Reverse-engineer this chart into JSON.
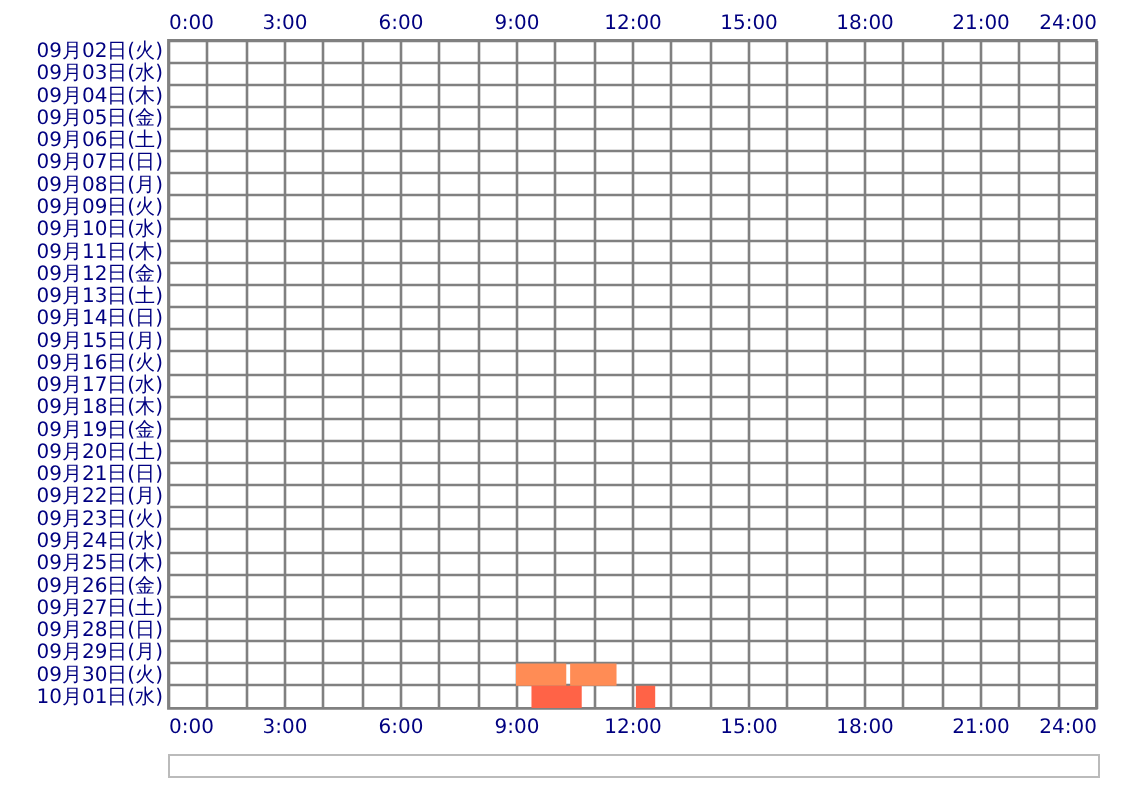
{
  "chart_data": {
    "type": "bar",
    "orientation": "horizontal",
    "categories": [
      "09月02日(火)",
      "09月03日(水)",
      "09月04日(木)",
      "09月05日(金)",
      "09月06日(土)",
      "09月07日(日)",
      "09月08日(月)",
      "09月09日(火)",
      "09月10日(水)",
      "09月11日(木)",
      "09月12日(金)",
      "09月13日(土)",
      "09月14日(日)",
      "09月15日(月)",
      "09月16日(火)",
      "09月17日(水)",
      "09月18日(木)",
      "09月19日(金)",
      "09月20日(土)",
      "09月21日(日)",
      "09月22日(月)",
      "09月23日(火)",
      "09月24日(水)",
      "09月25日(木)",
      "09月26日(金)",
      "09月27日(土)",
      "09月28日(日)",
      "09月29日(月)",
      "09月30日(火)",
      "10月01日(水)"
    ],
    "series": [
      {
        "values": [
          null,
          null,
          null,
          null,
          null,
          null,
          null,
          null,
          null,
          null,
          null,
          null,
          null,
          null,
          null,
          null,
          null,
          null,
          null,
          null,
          null,
          null,
          null,
          null,
          null,
          null,
          null,
          null,
          1.3,
          1.3
        ],
        "base": [
          null,
          null,
          null,
          null,
          null,
          null,
          null,
          null,
          null,
          null,
          null,
          null,
          null,
          null,
          null,
          null,
          null,
          null,
          null,
          null,
          null,
          null,
          null,
          null,
          null,
          null,
          null,
          null,
          9.0,
          9.4
        ],
        "colors": [
          null,
          null,
          null,
          null,
          null,
          null,
          null,
          null,
          null,
          null,
          null,
          null,
          null,
          null,
          null,
          null,
          null,
          null,
          null,
          null,
          null,
          null,
          null,
          null,
          null,
          null,
          null,
          null,
          "#ff8c55",
          "#ff6347"
        ]
      },
      {
        "values": [
          null,
          null,
          null,
          null,
          null,
          null,
          null,
          null,
          null,
          null,
          null,
          null,
          null,
          null,
          null,
          null,
          null,
          null,
          null,
          null,
          null,
          null,
          null,
          null,
          null,
          null,
          null,
          null,
          1.2,
          0.5
        ],
        "base": [
          null,
          null,
          null,
          null,
          null,
          null,
          null,
          null,
          null,
          null,
          null,
          null,
          null,
          null,
          null,
          null,
          null,
          null,
          null,
          null,
          null,
          null,
          null,
          null,
          null,
          null,
          null,
          null,
          10.4,
          12.1
        ],
        "colors": [
          null,
          null,
          null,
          null,
          null,
          null,
          null,
          null,
          null,
          null,
          null,
          null,
          null,
          null,
          null,
          null,
          null,
          null,
          null,
          null,
          null,
          null,
          null,
          null,
          null,
          null,
          null,
          null,
          "#ff8c55",
          "#ff6347"
        ]
      }
    ],
    "xlim": [
      0,
      24
    ],
    "xticks": [
      {
        "value": 0,
        "label": "0:00"
      },
      {
        "value": 1,
        "label": null
      },
      {
        "value": 2,
        "label": null
      },
      {
        "value": 3,
        "label": "3:00"
      },
      {
        "value": 4,
        "label": null
      },
      {
        "value": 5,
        "label": null
      },
      {
        "value": 6,
        "label": "6:00"
      },
      {
        "value": 7,
        "label": null
      },
      {
        "value": 8,
        "label": null
      },
      {
        "value": 9,
        "label": "9:00"
      },
      {
        "value": 10,
        "label": null
      },
      {
        "value": 11,
        "label": null
      },
      {
        "value": 12,
        "label": "12:00"
      },
      {
        "value": 13,
        "label": null
      },
      {
        "value": 14,
        "label": null
      },
      {
        "value": 15,
        "label": "15:00"
      },
      {
        "value": 16,
        "label": null
      },
      {
        "value": 17,
        "label": null
      },
      {
        "value": 18,
        "label": "18:00"
      },
      {
        "value": 19,
        "label": null
      },
      {
        "value": 20,
        "label": null
      },
      {
        "value": 21,
        "label": "21:00"
      },
      {
        "value": 22,
        "label": null
      },
      {
        "value": 23,
        "label": null
      },
      {
        "value": 24,
        "label": "24:00"
      }
    ],
    "x2lim": [
      0,
      24
    ],
    "x2ticks": [
      {
        "value": 0,
        "label": "0:00"
      },
      {
        "value": 1,
        "label": null
      },
      {
        "value": 2,
        "label": null
      },
      {
        "value": 3,
        "label": "3:00"
      },
      {
        "value": 4,
        "label": null
      },
      {
        "value": 5,
        "label": null
      },
      {
        "value": 6,
        "label": "6:00"
      },
      {
        "value": 7,
        "label": null
      },
      {
        "value": 8,
        "label": null
      },
      {
        "value": 9,
        "label": "9:00"
      },
      {
        "value": 10,
        "label": null
      },
      {
        "value": 11,
        "label": null
      },
      {
        "value": 12,
        "label": "12:00"
      },
      {
        "value": 13,
        "label": null
      },
      {
        "value": 14,
        "label": null
      },
      {
        "value": 15,
        "label": "15:00"
      },
      {
        "value": 16,
        "label": null
      },
      {
        "value": 17,
        "label": null
      },
      {
        "value": 18,
        "label": "18:00"
      },
      {
        "value": 19,
        "label": null
      },
      {
        "value": 20,
        "label": null
      },
      {
        "value": 21,
        "label": "21:00"
      },
      {
        "value": 22,
        "label": null
      },
      {
        "value": 23,
        "label": null
      },
      {
        "value": 24,
        "label": "24:00"
      }
    ],
    "grid": true
  }
}
